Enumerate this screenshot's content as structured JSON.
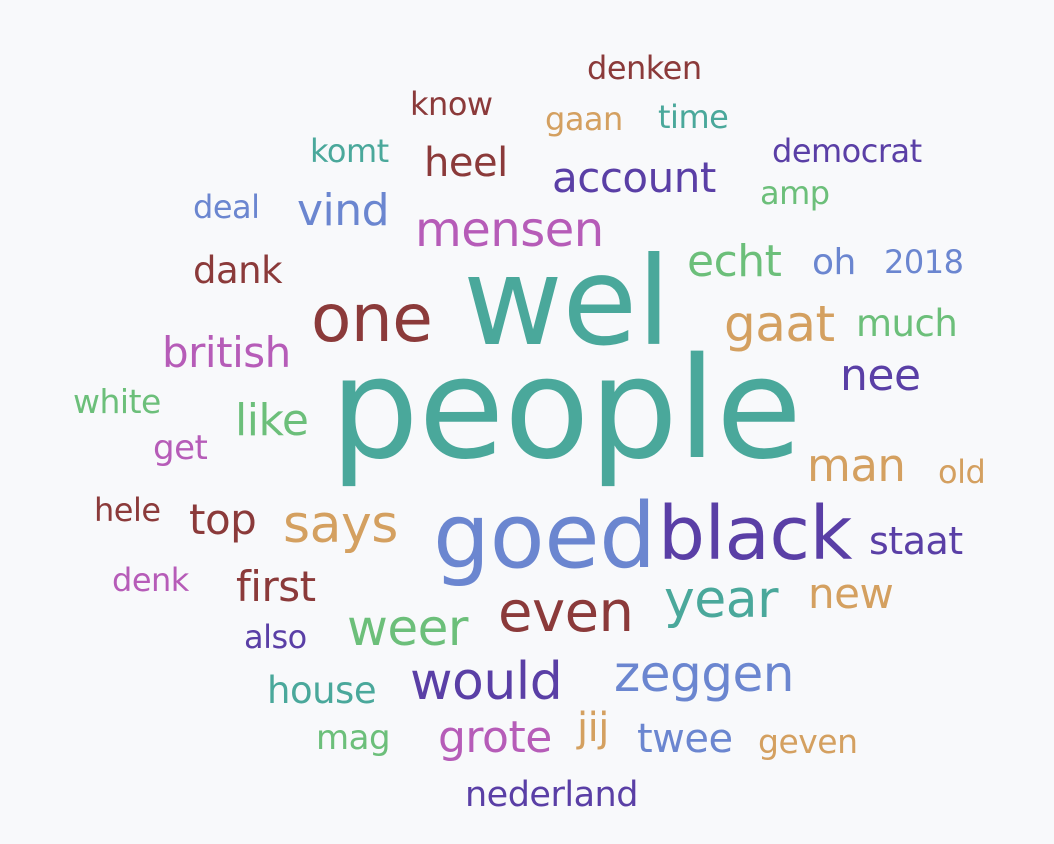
{
  "colors": {
    "background": "#f8f9fb",
    "teal": "#4aa89b",
    "darkred": "#8b3a3a",
    "tan": "#d4a060",
    "purple": "#5a3fa6",
    "orchid": "#b65cb8",
    "green": "#6cbf7a",
    "blue": "#6b86d0"
  },
  "words": [
    {
      "text": "denken",
      "color": "#8b3a3a"
    },
    {
      "text": "know",
      "color": "#8b3a3a"
    },
    {
      "text": "gaan",
      "color": "#d4a060"
    },
    {
      "text": "time",
      "color": "#4aa89b"
    },
    {
      "text": "komt",
      "color": "#4aa89b"
    },
    {
      "text": "heel",
      "color": "#8b3a3a"
    },
    {
      "text": "democrat",
      "color": "#5a3fa6"
    },
    {
      "text": "account",
      "color": "#5a3fa6"
    },
    {
      "text": "amp",
      "color": "#6cbf7a"
    },
    {
      "text": "deal",
      "color": "#6b86d0"
    },
    {
      "text": "vind",
      "color": "#6b86d0"
    },
    {
      "text": "mensen",
      "color": "#b65cb8"
    },
    {
      "text": "dank",
      "color": "#8b3a3a"
    },
    {
      "text": "echt",
      "color": "#6cbf7a"
    },
    {
      "text": "oh",
      "color": "#6b86d0"
    },
    {
      "text": "2018",
      "color": "#6b86d0"
    },
    {
      "text": "one",
      "color": "#8b3a3a"
    },
    {
      "text": "wel",
      "color": "#4aa89b"
    },
    {
      "text": "gaat",
      "color": "#d4a060"
    },
    {
      "text": "much",
      "color": "#6cbf7a"
    },
    {
      "text": "british",
      "color": "#b65cb8"
    },
    {
      "text": "nee",
      "color": "#5a3fa6"
    },
    {
      "text": "white",
      "color": "#6cbf7a"
    },
    {
      "text": "people",
      "color": "#4aa89b"
    },
    {
      "text": "like",
      "color": "#6cbf7a"
    },
    {
      "text": "get",
      "color": "#b65cb8"
    },
    {
      "text": "man",
      "color": "#d4a060"
    },
    {
      "text": "old",
      "color": "#d4a060"
    },
    {
      "text": "hele",
      "color": "#8b3a3a"
    },
    {
      "text": "top",
      "color": "#8b3a3a"
    },
    {
      "text": "says",
      "color": "#d4a060"
    },
    {
      "text": "goed",
      "color": "#6b86d0"
    },
    {
      "text": "black",
      "color": "#5a3fa6"
    },
    {
      "text": "staat",
      "color": "#5a3fa6"
    },
    {
      "text": "denk",
      "color": "#b65cb8"
    },
    {
      "text": "first",
      "color": "#8b3a3a"
    },
    {
      "text": "year",
      "color": "#4aa89b"
    },
    {
      "text": "new",
      "color": "#d4a060"
    },
    {
      "text": "even",
      "color": "#8b3a3a"
    },
    {
      "text": "weer",
      "color": "#6cbf7a"
    },
    {
      "text": "also",
      "color": "#5a3fa6"
    },
    {
      "text": "zeggen",
      "color": "#6b86d0"
    },
    {
      "text": "would",
      "color": "#5a3fa6"
    },
    {
      "text": "house",
      "color": "#4aa89b"
    },
    {
      "text": "grote",
      "color": "#b65cb8"
    },
    {
      "text": "jij",
      "color": "#d4a060"
    },
    {
      "text": "twee",
      "color": "#6b86d0"
    },
    {
      "text": "mag",
      "color": "#6cbf7a"
    },
    {
      "text": "geven",
      "color": "#d4a060"
    },
    {
      "text": "nederland",
      "color": "#5a3fa6"
    }
  ]
}
